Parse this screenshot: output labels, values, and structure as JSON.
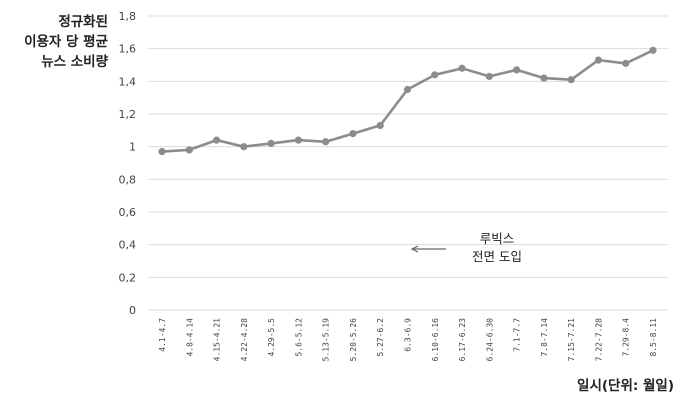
{
  "chart_data": {
    "type": "line",
    "ylabel_lines": [
      "정규화된",
      "이용자 당 평균",
      "뉴스 소비량"
    ],
    "xlabel": "일시(단위: 월일)",
    "ylim": [
      0,
      1.8
    ],
    "yticks": [
      "0",
      "0,2",
      "0,4",
      "0,6",
      "0,8",
      "1",
      "1,2",
      "1,4",
      "1,6",
      "1,8"
    ],
    "grid": true,
    "categories": [
      "4.1-4.7",
      "4.8-4.14",
      "4.15-4.21",
      "4.22-4.28",
      "4.29-5.5",
      "5.6-5.12",
      "5.13-5.19",
      "5.20-5.26",
      "5.27-6.2",
      "6.3-6.9",
      "6.10-6.16",
      "6.17-6.23",
      "6.24-6.30",
      "7.1-7.7",
      "7.8-7.14",
      "7.15-7.21",
      "7.22-7.28",
      "7.29-8.4",
      "8.5-8.11"
    ],
    "values": [
      0.97,
      0.98,
      1.04,
      1.0,
      1.02,
      1.04,
      1.03,
      1.08,
      1.13,
      1.35,
      1.44,
      1.48,
      1.43,
      1.47,
      1.42,
      1.41,
      1.53,
      1.51,
      1.59
    ],
    "annotation": {
      "lines": [
        "루빅스",
        "전면 도입"
      ],
      "arrow": "left"
    }
  }
}
